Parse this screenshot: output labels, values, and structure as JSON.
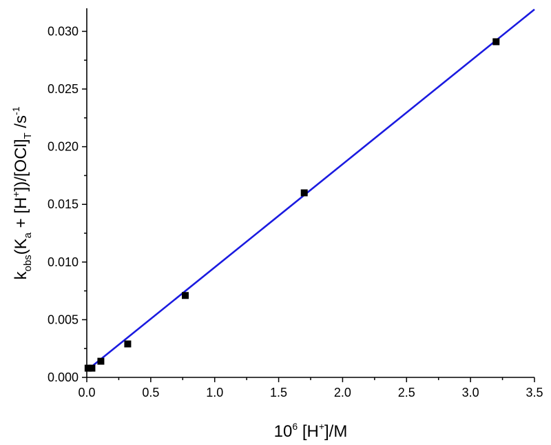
{
  "chart_data": {
    "type": "scatter",
    "x": [
      0.01,
      0.04,
      0.11,
      0.32,
      0.77,
      1.7,
      3.2
    ],
    "y": [
      0.0008,
      0.0008,
      0.0014,
      0.0029,
      0.0071,
      0.016,
      0.0291
    ],
    "fit": {
      "x": [
        0.0,
        3.5
      ],
      "y": [
        0.0006,
        0.0319
      ]
    },
    "xlim": [
      0,
      3.5
    ],
    "ylim": [
      0,
      0.032
    ],
    "xticks": [
      "0.0",
      "0.5",
      "1.0",
      "1.5",
      "2.0",
      "2.5",
      "3.0",
      "3.5"
    ],
    "yticks": [
      "0.000",
      "0.005",
      "0.010",
      "0.015",
      "0.020",
      "0.025",
      "0.030"
    ],
    "xlabel": {
      "base": "10",
      "sup": "6",
      "mid": " [H",
      "sup2": "+",
      "end": "]/M"
    },
    "ylabel": {
      "k": "k",
      "obs": "obs",
      "open": "(K",
      "a": "a",
      "plus": " + [H",
      "plussup": "+",
      "mid": "])/[OCl]",
      "T": "T",
      "unit": " /s",
      "exp": "-1"
    },
    "colors": {
      "fit": "#1a1ae0",
      "points": "#000000"
    },
    "grid": false,
    "legend": "none"
  }
}
